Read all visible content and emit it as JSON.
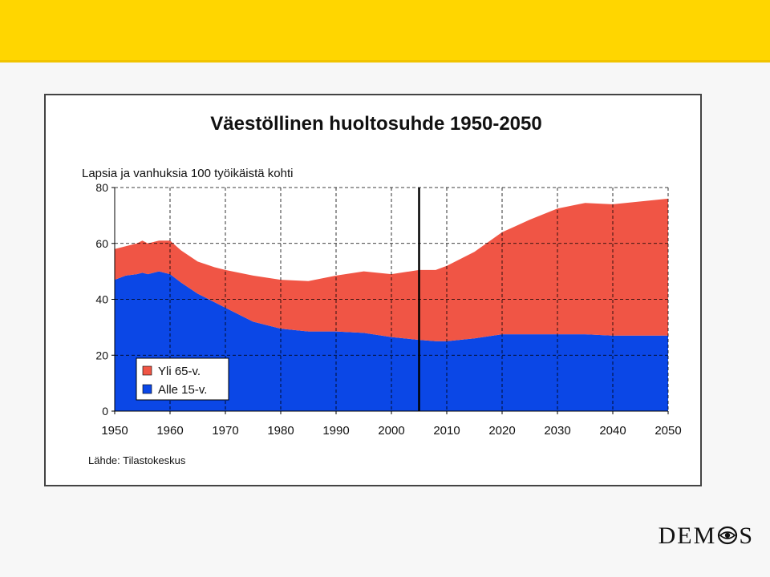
{
  "logo": {
    "text_left": "DEM",
    "text_right": "S"
  },
  "colors": {
    "top_bar": "#ffd600",
    "over65": "#f05545",
    "under15": "#0b47e6"
  },
  "chart_data": {
    "type": "area",
    "title": "Väestöllinen huoltosuhde 1950-2050",
    "ylabel": "Lapsia ja vanhuksia 100 työikäistä kohti",
    "source": "Lähde: Tilastokeskus",
    "xlim": [
      1950,
      2050
    ],
    "ylim": [
      0,
      80
    ],
    "x_ticks": [
      1950,
      1960,
      1970,
      1980,
      1990,
      2000,
      2010,
      2020,
      2030,
      2040,
      2050
    ],
    "y_ticks": [
      0,
      20,
      40,
      60,
      80
    ],
    "grid": true,
    "stacked": true,
    "marker_year": 2005,
    "legend_position": "bottom-left",
    "x": [
      1950,
      1952,
      1954,
      1955,
      1956,
      1958,
      1960,
      1962,
      1965,
      1968,
      1970,
      1975,
      1980,
      1985,
      1990,
      1995,
      2000,
      2005,
      2008,
      2010,
      2015,
      2020,
      2025,
      2030,
      2035,
      2040,
      2045,
      2050
    ],
    "series": [
      {
        "name": "Alle 15-v.",
        "color": "#0b47e6",
        "values": [
          47,
          48.5,
          49,
          49.5,
          49,
          50,
          49,
          46,
          42,
          39,
          37,
          32,
          29.5,
          28.5,
          28.5,
          28,
          26.5,
          25.5,
          25,
          25,
          26,
          27.5,
          27.5,
          27.5,
          27.5,
          27,
          27,
          27
        ]
      },
      {
        "name": "Yli 65-v.",
        "color": "#f05545",
        "values": [
          11,
          10.5,
          11,
          11.5,
          11,
          11,
          12,
          11.5,
          11.5,
          12.5,
          13.5,
          16.5,
          17.5,
          18,
          20,
          22,
          22.5,
          25,
          25.5,
          27,
          31,
          36.5,
          41,
          45,
          47,
          47,
          48,
          49
        ]
      }
    ]
  }
}
